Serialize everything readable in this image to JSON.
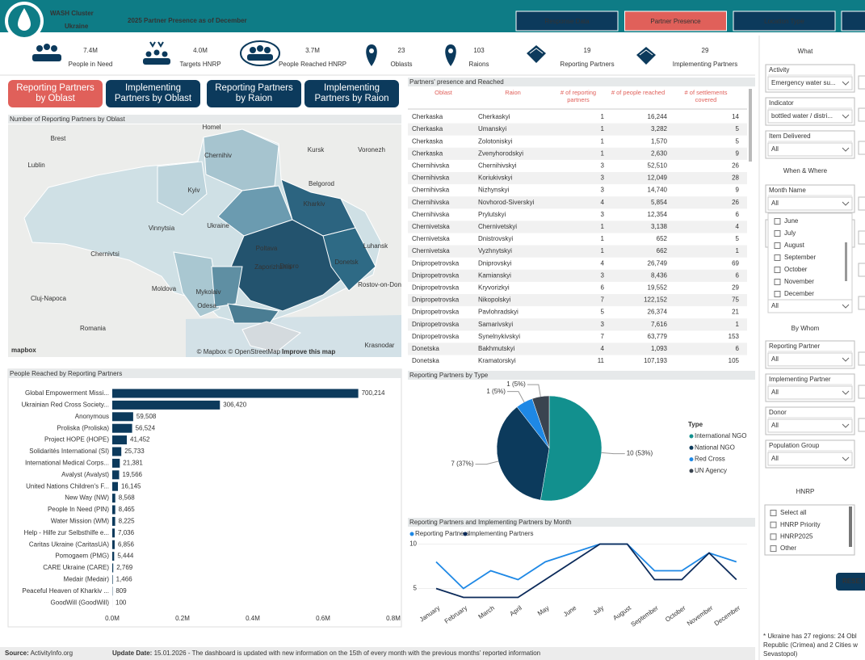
{
  "header": {
    "logo_title": "WASH Cluster",
    "logo_subtitle": "Ukraine",
    "title": "2025 Partner Presence as of December",
    "nav": [
      "Response Data",
      "Partner Presence",
      "Location Type"
    ]
  },
  "kpis": [
    {
      "value": "7.4M",
      "label": "People in Need"
    },
    {
      "value": "4.0M",
      "label": "Targets HNRP"
    },
    {
      "value": "3.7M",
      "label": "People Reached HNRP"
    },
    {
      "value": "23",
      "label": "Oblasts"
    },
    {
      "value": "103",
      "label": "Raions"
    },
    {
      "value": "19",
      "label": "Reporting Partners"
    },
    {
      "value": "29",
      "label": "Implementing Partners"
    }
  ],
  "tabs": [
    "Reporting Partners by Oblast",
    "Implementing Partners by Oblast",
    "Reporting Partners by Raion",
    "Implementing Partners by Raion"
  ],
  "map": {
    "title": "Number of Reporting Partners by Oblast",
    "labels": [
      "Homel",
      "Kursk",
      "Voronezh",
      "Brest",
      "Lublin",
      "Chernihiv",
      "Kyiv",
      "Belgorod",
      "Kharkiv",
      "Vinnytsia",
      "Ukraine",
      "Poltava",
      "Dnipro",
      "Zaporizhzhia",
      "Donetsk",
      "Luhansk",
      "Chernivtsi",
      "Moldova",
      "Mykolaiv",
      "Odesa",
      "Cluj-Napoca",
      "Romania",
      "Rostov-on-Don",
      "Krasnodar"
    ],
    "logo": "mapbox",
    "attribution": "© Mapbox © OpenStreetMap",
    "improve": "Improve this map"
  },
  "table": {
    "title": "Partners' presence and Reached",
    "columns": [
      "Oblast",
      "Raion",
      "# of reporting partners",
      "# of people reached",
      "# of settlements covered"
    ],
    "rows": [
      [
        "Cherkaska",
        "Cherkaskyi",
        "1",
        "16,244",
        "14"
      ],
      [
        "Cherkaska",
        "Umanskyi",
        "1",
        "3,282",
        "5"
      ],
      [
        "Cherkaska",
        "Zolotoniskyi",
        "1",
        "1,570",
        "5"
      ],
      [
        "Cherkaska",
        "Zvenyhorodskyi",
        "1",
        "2,630",
        "9"
      ],
      [
        "Chernihivska",
        "Chernihivskyi",
        "3",
        "52,510",
        "26"
      ],
      [
        "Chernihivska",
        "Koriukivskyi",
        "3",
        "12,049",
        "28"
      ],
      [
        "Chernihivska",
        "Nizhynskyi",
        "3",
        "14,740",
        "9"
      ],
      [
        "Chernihivska",
        "Novhorod-Siverskyi",
        "4",
        "5,854",
        "26"
      ],
      [
        "Chernihivska",
        "Prylutskyi",
        "3",
        "12,354",
        "6"
      ],
      [
        "Chernivetska",
        "Chernivetskyi",
        "1",
        "3,138",
        "4"
      ],
      [
        "Chernivetska",
        "Dnistrovskyi",
        "1",
        "652",
        "5"
      ],
      [
        "Chernivetska",
        "Vyzhnytskyi",
        "1",
        "662",
        "1"
      ],
      [
        "Dnipropetrovska",
        "Dniprovskyi",
        "4",
        "26,749",
        "69"
      ],
      [
        "Dnipropetrovska",
        "Kamianskyi",
        "3",
        "8,436",
        "6"
      ],
      [
        "Dnipropetrovska",
        "Kryvorizkyi",
        "6",
        "19,552",
        "29"
      ],
      [
        "Dnipropetrovska",
        "Nikopolskyi",
        "7",
        "122,152",
        "75"
      ],
      [
        "Dnipropetrovska",
        "Pavlohradskyi",
        "5",
        "26,374",
        "21"
      ],
      [
        "Dnipropetrovska",
        "Samarivskyi",
        "3",
        "7,616",
        "1"
      ],
      [
        "Dnipropetrovska",
        "Synelnykivskyi",
        "7",
        "63,779",
        "153"
      ],
      [
        "Donetska",
        "Bakhmutskyi",
        "4",
        "1,093",
        "6"
      ],
      [
        "Donetska",
        "Kramatorskyi",
        "11",
        "107,193",
        "105"
      ]
    ]
  },
  "chart_data": [
    {
      "type": "bar",
      "title": "People Reached by Reporting Partners",
      "categories": [
        "Global Empowerment Missi...",
        "Ukrainian Red Cross Society...",
        "Anonymous",
        "Proliska (Proliska)",
        "Project HOPE (HOPE)",
        "Solidarités International (SI)",
        "International Medical Corps...",
        "Avalyst (Avalyst)",
        "United Nations Children's F...",
        "New Way (NW)",
        "People In Need (PIN)",
        "Water Mission (WM)",
        "Help - Hilfe zur Selbsthilfe e...",
        "Caritas Ukraine (CaritasUA)",
        "Pomogaem (PMG)",
        "CARE Ukraine (CARE)",
        "Medair (Medair)",
        "Peaceful Heaven of Kharkiv ...",
        "GoodWill (GoodWill)"
      ],
      "values": [
        700214,
        306420,
        59508,
        56524,
        41452,
        25733,
        21381,
        19566,
        16145,
        8568,
        8465,
        8225,
        7036,
        6856,
        5444,
        2769,
        1466,
        809,
        100
      ],
      "value_labels": [
        "700,214",
        "306,420",
        "59,508",
        "56,524",
        "41,452",
        "25,733",
        "21,381",
        "19,566",
        "16,145",
        "8,568",
        "8,465",
        "8,225",
        "7,036",
        "6,856",
        "5,444",
        "2,769",
        "1,466",
        "809",
        "100"
      ],
      "color": "#0c3a5c",
      "label_color": "#d9534f",
      "xlim": [
        0,
        800000
      ],
      "xticks": [
        {
          "value": 0,
          "label": "0.0M"
        },
        {
          "value": 200000,
          "label": "0.2M"
        },
        {
          "value": 400000,
          "label": "0.4M"
        },
        {
          "value": 600000,
          "label": "0.6M"
        },
        {
          "value": 800000,
          "label": "0.8M"
        }
      ]
    },
    {
      "type": "pie",
      "title": "Reporting Partners by Type",
      "legend_title": "Type",
      "categories": [
        "International NGO",
        "National NGO",
        "Red Cross",
        "UN Agency"
      ],
      "values": [
        10,
        7,
        1,
        1
      ],
      "value_labels": [
        "10 (53%)",
        "7 (37%)",
        "1 (5%)",
        "1 (5%)"
      ],
      "colors": [
        "#12908e",
        "#0c3a5c",
        "#1e88e5",
        "#3a4450"
      ]
    },
    {
      "type": "line",
      "title": "Reporting Partners and Implementing Partners by Month",
      "categories": [
        "January",
        "February",
        "March",
        "April",
        "May",
        "June",
        "July",
        "August",
        "September",
        "October",
        "November",
        "December"
      ],
      "series": [
        {
          "name": "Reporting Partners",
          "color": "#1e88e5",
          "values": [
            8,
            5,
            7,
            6,
            8,
            9,
            10,
            10,
            7,
            7,
            9,
            8
          ]
        },
        {
          "name": "Implementing Partners",
          "color": "#0b2a5a",
          "values": [
            5,
            4,
            4,
            4,
            6,
            8,
            10,
            10,
            6,
            6,
            9,
            6
          ]
        }
      ],
      "ylim": [
        3.5,
        10.5
      ],
      "yticks": [
        5,
        10
      ],
      "grid": true
    }
  ],
  "filters": {
    "what": {
      "title": "What",
      "fields": [
        {
          "label": "Activity",
          "value": "Emergency water su..."
        },
        {
          "label": "Indicator",
          "value": "bottled water / distri..."
        },
        {
          "label": "Item Delivered",
          "value": "All"
        }
      ]
    },
    "when": {
      "title": "When & Where",
      "month": {
        "label": "Month Name",
        "value": "All",
        "options": [
          "June",
          "July",
          "August",
          "September",
          "October",
          "November",
          "December"
        ]
      },
      "last_value": "All"
    },
    "whom": {
      "title": "By Whom",
      "fields": [
        {
          "label": "Reporting Partner",
          "value": "All"
        },
        {
          "label": "Implementing Partner",
          "value": "All"
        },
        {
          "label": "Donor",
          "value": "All"
        },
        {
          "label": "Population Group",
          "value": "All"
        }
      ]
    },
    "hnrp": {
      "title": "HNRP",
      "options": [
        "Select all",
        "HNRP Priority",
        "HNRP2025",
        "Other"
      ]
    },
    "reset": "RESET",
    "note": [
      "* Ukraine has 27 regions: 24 Obl",
      "Republic (Crimea) and 2 Cities w",
      "Sevastopol)"
    ]
  },
  "footer": {
    "source_label": "Source:",
    "source": " ActivityInfo.org",
    "update_label": "Update Date:",
    "update_text": " 15.01.2026  - The dashboard is updated with new information on the 15th of every month with the previous months' reported information"
  }
}
